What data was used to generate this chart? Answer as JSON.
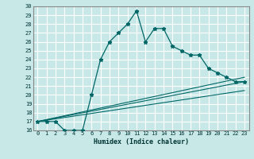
{
  "xlabel": "Humidex (Indice chaleur)",
  "ylabel": "",
  "background_color": "#c8e8e8",
  "grid_color": "#ffffff",
  "line_color": "#006666",
  "xlim": [
    -0.5,
    23.5
  ],
  "ylim": [
    16,
    30
  ],
  "xticks": [
    0,
    1,
    2,
    3,
    4,
    5,
    6,
    7,
    8,
    9,
    10,
    11,
    12,
    13,
    14,
    15,
    16,
    17,
    18,
    19,
    20,
    21,
    22,
    23
  ],
  "yticks": [
    16,
    17,
    18,
    19,
    20,
    21,
    22,
    23,
    24,
    25,
    26,
    27,
    28,
    29,
    30
  ],
  "series": [
    {
      "x": [
        0,
        1,
        2,
        3,
        4,
        5,
        6,
        7,
        8,
        9,
        10,
        11,
        12,
        13,
        14,
        15,
        16,
        17,
        18,
        19,
        20,
        21,
        22,
        23
      ],
      "y": [
        17,
        17,
        17,
        16,
        16,
        16,
        20,
        24,
        26,
        27,
        28,
        29.5,
        26,
        27.5,
        27.5,
        25.5,
        25,
        24.5,
        24.5,
        23,
        22.5,
        22,
        21.5,
        21.5
      ]
    },
    {
      "x": [
        0,
        23
      ],
      "y": [
        17,
        21.5
      ]
    },
    {
      "x": [
        0,
        23
      ],
      "y": [
        17,
        20.5
      ]
    },
    {
      "x": [
        0,
        23
      ],
      "y": [
        17,
        22
      ]
    }
  ]
}
